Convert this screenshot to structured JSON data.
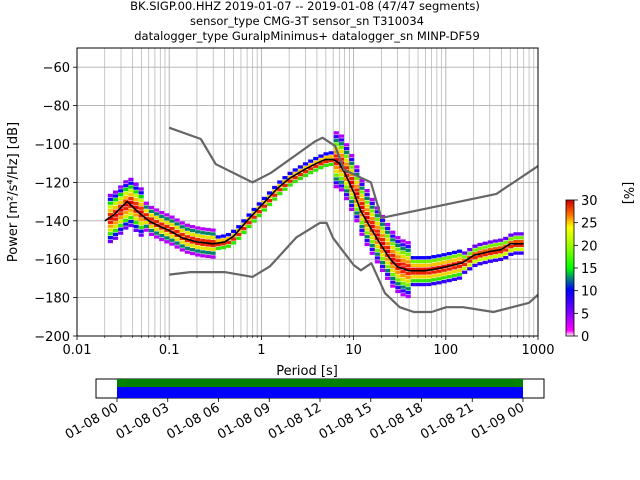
{
  "title_lines": [
    "BK.SIGP.00.HHZ   2019-01-07 -- 2019-01-08  (47/47 segments)",
    "sensor_type CMG-3T sensor_sn T310034",
    "datalogger_type GuralpMinimus+ datalogger_sn MINP-DF59"
  ],
  "chart_data": {
    "type": "heatmap",
    "title": "BK.SIGP.00.HHZ   2019-01-07 -- 2019-01-08  (47/47 segments)",
    "xlabel": "Period [s]",
    "ylabel": "Power [m²/s⁴/Hz] [dB]",
    "xscale": "log",
    "xlim": [
      0.01,
      1000
    ],
    "ylim": [
      -200,
      -50
    ],
    "x_tick_labels": [
      "0.01",
      "0.1",
      "1",
      "10",
      "100",
      "1000"
    ],
    "y_ticks": [
      -60,
      -80,
      -100,
      -120,
      -140,
      -160,
      -180,
      -200
    ],
    "grid": true,
    "colorbar": {
      "label": "[%]",
      "range": [
        0,
        30
      ],
      "ticks": [
        0,
        5,
        10,
        15,
        20,
        25,
        30
      ]
    },
    "series": [
      {
        "color": "#000000",
        "points": [
          [
            0.02,
            -140
          ],
          [
            0.025,
            -137
          ],
          [
            0.03,
            -133
          ],
          [
            0.035,
            -130
          ],
          [
            0.045,
            -135
          ],
          [
            0.06,
            -140
          ],
          [
            0.08,
            -143
          ],
          [
            0.1,
            -145
          ],
          [
            0.14,
            -149
          ],
          [
            0.2,
            -151
          ],
          [
            0.3,
            -152
          ],
          [
            0.4,
            -151
          ],
          [
            0.5,
            -148
          ],
          [
            0.7,
            -140
          ],
          [
            1,
            -132
          ],
          [
            1.5,
            -123
          ],
          [
            2,
            -118
          ],
          [
            3,
            -113
          ],
          [
            4,
            -110
          ],
          [
            5,
            -108
          ],
          [
            6,
            -108
          ],
          [
            7,
            -110
          ],
          [
            8,
            -115
          ],
          [
            10,
            -125
          ],
          [
            12,
            -135
          ],
          [
            15,
            -143
          ],
          [
            20,
            -153
          ],
          [
            25,
            -160
          ],
          [
            30,
            -164
          ],
          [
            40,
            -166
          ],
          [
            60,
            -166
          ],
          [
            80,
            -165
          ],
          [
            100,
            -164
          ],
          [
            150,
            -162
          ],
          [
            200,
            -158
          ],
          [
            300,
            -156
          ],
          [
            400,
            -155
          ],
          [
            500,
            -152
          ],
          [
            700,
            -152
          ]
        ]
      },
      {
        "color": "#666666",
        "points": [
          [
            0.1,
            -91.5
          ],
          [
            0.22,
            -97.4
          ],
          [
            0.32,
            -110.5
          ],
          [
            0.8,
            -120
          ],
          [
            1.27,
            -115
          ],
          [
            3.8,
            -98.7
          ],
          [
            4.6,
            -96.7
          ],
          [
            6.3,
            -101
          ],
          [
            7.9,
            -113.5
          ],
          [
            15.4,
            -120
          ],
          [
            20,
            -138.5
          ],
          [
            354,
            -126
          ],
          [
            1000,
            -111.5
          ]
        ]
      },
      {
        "color": "#666666",
        "points": [
          [
            0.1,
            -168
          ],
          [
            0.17,
            -166.7
          ],
          [
            0.4,
            -166.7
          ],
          [
            0.8,
            -169.2
          ],
          [
            1.24,
            -163.7
          ],
          [
            2.4,
            -148.6
          ],
          [
            4.3,
            -141.1
          ],
          [
            5.1,
            -141.1
          ],
          [
            6,
            -149
          ],
          [
            10,
            -163
          ],
          [
            12,
            -165.8
          ],
          [
            15.6,
            -162.1
          ],
          [
            21.9,
            -177.7
          ],
          [
            31.6,
            -185
          ],
          [
            45,
            -187.5
          ],
          [
            70,
            -187.5
          ],
          [
            101,
            -185
          ],
          [
            154,
            -185
          ],
          [
            328,
            -187.5
          ],
          [
            800,
            -182.7
          ],
          [
            1000,
            -178.5
          ]
        ]
      }
    ]
  },
  "time_axis": {
    "tick_labels": [
      "01-08 00",
      "01-08 03",
      "01-08 06",
      "01-08 09",
      "01-08 12",
      "01-08 15",
      "01-08 18",
      "01-08 21",
      "01-09 00"
    ],
    "coverage_colors": [
      "#008000",
      "#0000ff"
    ]
  }
}
